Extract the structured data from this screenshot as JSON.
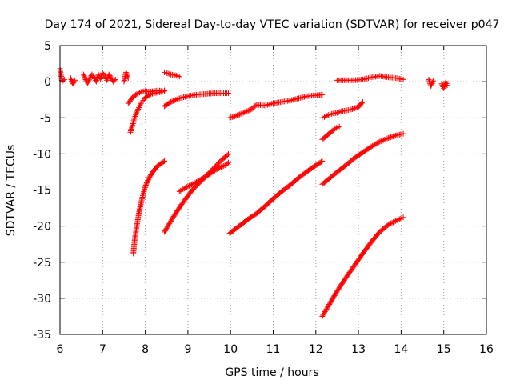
{
  "chart_data": {
    "type": "scatter",
    "title": "Day 174 of 2021, Sidereal Day-to-day VTEC variation (SDTVAR) for receiver p047",
    "xlabel": "GPS time / hours",
    "ylabel": "SDTVAR / TECUs",
    "xlim": [
      6,
      16
    ],
    "ylim": [
      -35,
      5
    ],
    "xticks": [
      6,
      7,
      8,
      9,
      10,
      11,
      12,
      13,
      14,
      15,
      16
    ],
    "yticks": [
      5,
      0,
      -5,
      -10,
      -15,
      -20,
      -25,
      -30,
      -35
    ],
    "grid": true,
    "marker": "plus",
    "color": "#ff0000",
    "segments": [
      {
        "x": [
          6.0,
          6.05,
          6.1
        ],
        "y": [
          1.8,
          0.0,
          0.3
        ]
      },
      {
        "x": [
          6.25,
          6.3,
          6.35
        ],
        "y": [
          0.5,
          -0.3,
          0.2
        ]
      },
      {
        "x": [
          6.55,
          6.6,
          6.65,
          6.7,
          6.75,
          6.8,
          6.85,
          6.9,
          6.95,
          7.0,
          7.05,
          7.1,
          7.15,
          7.2,
          7.25,
          7.3
        ],
        "y": [
          1.0,
          0.3,
          -0.2,
          0.5,
          1.0,
          0.6,
          0.0,
          1.0,
          0.4,
          1.2,
          0.8,
          0.2,
          1.0,
          0.5,
          0.0,
          0.3
        ]
      },
      {
        "x": [
          7.5,
          7.55,
          7.6
        ],
        "y": [
          0.0,
          1.3,
          0.5
        ]
      },
      {
        "x": [
          7.65,
          7.7,
          7.75,
          7.8,
          7.85,
          7.9,
          7.95,
          8.0,
          8.1,
          8.2,
          8.3,
          8.4,
          8.45
        ],
        "y": [
          -7.0,
          -6.0,
          -5.0,
          -4.2,
          -3.6,
          -3.0,
          -2.6,
          -2.2,
          -1.8,
          -1.6,
          -1.5,
          -1.4,
          -1.3
        ]
      },
      {
        "x": [
          7.6,
          7.7,
          7.8,
          7.9,
          8.0,
          8.1,
          8.2,
          8.3,
          8.4,
          8.45
        ],
        "y": [
          -3.0,
          -2.2,
          -1.7,
          -1.4,
          -1.3,
          -1.4,
          -1.3,
          -1.2,
          -1.3,
          -1.2
        ]
      },
      {
        "x": [
          7.72,
          7.75,
          7.8,
          7.85,
          7.9,
          7.95,
          8.0,
          8.1,
          8.2,
          8.3,
          8.4,
          8.45
        ],
        "y": [
          -23.8,
          -22.0,
          -20.0,
          -18.2,
          -16.8,
          -15.6,
          -14.5,
          -13.2,
          -12.3,
          -11.6,
          -11.2,
          -11.0
        ]
      },
      {
        "x": [
          8.45,
          8.5,
          8.6,
          8.7,
          8.8
        ],
        "y": [
          1.3,
          1.2,
          1.0,
          0.9,
          0.7
        ]
      },
      {
        "x": [
          8.45,
          8.6,
          8.8,
          9.0,
          9.2,
          9.4,
          9.6,
          9.8,
          9.95
        ],
        "y": [
          -3.4,
          -2.8,
          -2.3,
          -2.0,
          -1.8,
          -1.7,
          -1.6,
          -1.6,
          -1.6
        ]
      },
      {
        "x": [
          8.45,
          8.55,
          8.65,
          8.75,
          8.85,
          8.95,
          9.05,
          9.15,
          9.3,
          9.45,
          9.6,
          9.75,
          9.9,
          9.95
        ],
        "y": [
          -20.8,
          -19.8,
          -18.8,
          -17.9,
          -17.0,
          -16.2,
          -15.4,
          -14.7,
          -13.8,
          -13.0,
          -12.4,
          -11.9,
          -11.5,
          -11.2
        ]
      },
      {
        "x": [
          8.8,
          9.0,
          9.2,
          9.4,
          9.5,
          9.6,
          9.7,
          9.8,
          9.9,
          9.95
        ],
        "y": [
          -15.2,
          -14.5,
          -13.9,
          -13.2,
          -12.6,
          -12.0,
          -11.4,
          -10.8,
          -10.3,
          -10.0
        ]
      },
      {
        "x": [
          9.98,
          10.1,
          10.3,
          10.5,
          10.6,
          10.8,
          11.0,
          11.2,
          11.4,
          11.6,
          11.8,
          12.0,
          12.15
        ],
        "y": [
          -5.0,
          -4.8,
          -4.3,
          -3.8,
          -3.2,
          -3.3,
          -3.0,
          -2.8,
          -2.6,
          -2.3,
          -2.0,
          -1.9,
          -1.8
        ]
      },
      {
        "x": [
          9.98,
          10.2,
          10.4,
          10.6,
          10.8,
          11.0,
          11.2,
          11.4,
          11.6,
          11.8,
          12.0,
          12.15
        ],
        "y": [
          -21.0,
          -20.0,
          -19.1,
          -18.3,
          -17.3,
          -16.2,
          -15.2,
          -14.3,
          -13.3,
          -12.4,
          -11.6,
          -11.0
        ]
      },
      {
        "x": [
          12.15,
          12.2,
          12.3,
          12.4,
          12.5,
          12.6,
          12.8,
          13.0,
          13.1
        ],
        "y": [
          -5.0,
          -4.9,
          -4.6,
          -4.4,
          -4.3,
          -4.1,
          -3.9,
          -3.5,
          -2.8
        ]
      },
      {
        "x": [
          12.15,
          12.25,
          12.35,
          12.45,
          12.55
        ],
        "y": [
          -8.0,
          -7.5,
          -7.0,
          -6.5,
          -6.2
        ]
      },
      {
        "x": [
          12.15,
          12.3,
          12.5,
          12.7,
          12.9,
          13.1,
          13.3,
          13.5,
          13.7,
          13.9,
          14.05
        ],
        "y": [
          -14.2,
          -13.5,
          -12.5,
          -11.6,
          -10.6,
          -9.8,
          -9.0,
          -8.3,
          -7.8,
          -7.4,
          -7.2
        ]
      },
      {
        "x": [
          12.15,
          12.3,
          12.5,
          12.7,
          12.9,
          13.1,
          13.3,
          13.5,
          13.7,
          13.9,
          14.05
        ],
        "y": [
          -32.5,
          -31.0,
          -29.0,
          -27.2,
          -25.5,
          -23.8,
          -22.2,
          -20.8,
          -19.8,
          -19.2,
          -18.8
        ]
      },
      {
        "x": [
          12.5,
          12.7,
          12.9,
          13.1,
          13.3,
          13.5,
          13.7,
          13.9,
          14.05
        ],
        "y": [
          0.2,
          0.2,
          0.2,
          0.3,
          0.6,
          0.8,
          0.6,
          0.5,
          0.3
        ]
      },
      {
        "x": [
          14.65,
          14.7,
          14.75
        ],
        "y": [
          0.3,
          -0.6,
          0.1
        ]
      },
      {
        "x": [
          14.95,
          15.0,
          15.05,
          15.08
        ],
        "y": [
          -0.3,
          -0.9,
          0.0,
          -0.5
        ]
      }
    ]
  }
}
